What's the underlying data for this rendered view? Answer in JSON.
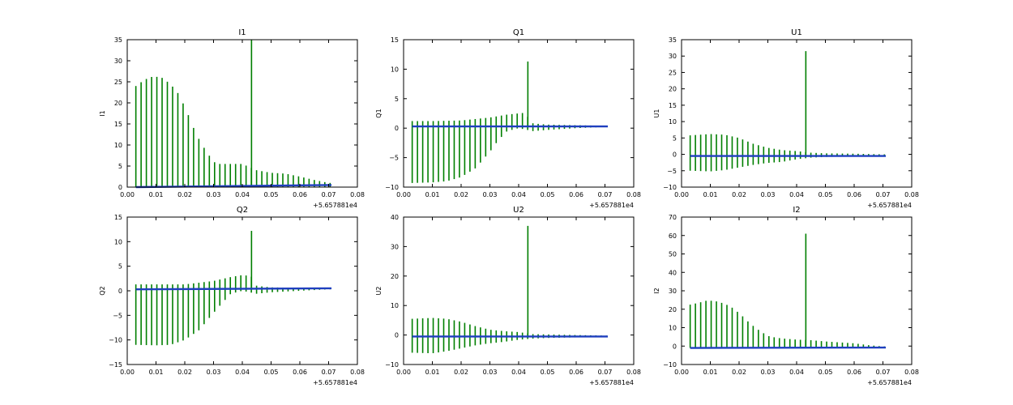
{
  "chart_data": [
    {
      "type": "line",
      "title": "I1",
      "ylabel": "I1",
      "xlabel": "",
      "x_offset_label": "+5.657881e4",
      "xlim": [
        0.0,
        0.08
      ],
      "xticks": [
        "0.00",
        "0.01",
        "0.02",
        "0.03",
        "0.04",
        "0.05",
        "0.06",
        "0.07",
        "0.08"
      ],
      "ylim": [
        0,
        35
      ],
      "yticks": [
        "0",
        "5",
        "10",
        "15",
        "20",
        "25",
        "30",
        "35"
      ],
      "grid": false,
      "colors": {
        "spikes": "#007f00",
        "baseline": "#1f3fbf"
      },
      "baseline": {
        "x0": 0.003,
        "x1": 0.071,
        "y0": 0.0,
        "y1": 0.5
      },
      "spike": {
        "x": 0.0432,
        "y": 35
      },
      "envelope_top": [
        [
          0.003,
          24
        ],
        [
          0.006,
          25.5
        ],
        [
          0.009,
          26.3
        ],
        [
          0.012,
          26
        ],
        [
          0.015,
          24.5
        ],
        [
          0.018,
          22
        ],
        [
          0.021,
          17.5
        ],
        [
          0.024,
          12.5
        ],
        [
          0.027,
          9
        ],
        [
          0.03,
          6
        ],
        [
          0.032,
          5.5
        ],
        [
          0.036,
          5.5
        ],
        [
          0.04,
          5.5
        ],
        [
          0.045,
          4
        ],
        [
          0.05,
          3.4
        ],
        [
          0.055,
          3.2
        ],
        [
          0.06,
          2.5
        ],
        [
          0.065,
          1.7
        ],
        [
          0.07,
          1.0
        ]
      ],
      "envelope_bottom": [
        [
          0.003,
          0
        ],
        [
          0.07,
          0
        ]
      ]
    },
    {
      "type": "line",
      "title": "Q1",
      "ylabel": "Q1",
      "xlabel": "",
      "x_offset_label": "+5.657881e4",
      "xlim": [
        0.0,
        0.08
      ],
      "xticks": [
        "0.00",
        "0.01",
        "0.02",
        "0.03",
        "0.04",
        "0.05",
        "0.06",
        "0.07",
        "0.08"
      ],
      "ylim": [
        -10,
        15
      ],
      "yticks": [
        "−10",
        "−5",
        "0",
        "5",
        "10",
        "15"
      ],
      "grid": false,
      "colors": {
        "spikes": "#007f00",
        "baseline": "#1f3fbf"
      },
      "baseline": {
        "x0": 0.003,
        "x1": 0.071,
        "y0": 0.3,
        "y1": 0.3
      },
      "spike": {
        "x": 0.0432,
        "y": 11.3
      },
      "envelope_top": [
        [
          0.003,
          1.2
        ],
        [
          0.01,
          1.2
        ],
        [
          0.02,
          1.3
        ],
        [
          0.03,
          1.8
        ],
        [
          0.036,
          2.3
        ],
        [
          0.042,
          2.6
        ],
        [
          0.045,
          0.8
        ],
        [
          0.05,
          0.6
        ],
        [
          0.06,
          0.5
        ],
        [
          0.07,
          0.4
        ]
      ],
      "envelope_bottom": [
        [
          0.003,
          -9.3
        ],
        [
          0.01,
          -9.2
        ],
        [
          0.015,
          -9.0
        ],
        [
          0.02,
          -8.3
        ],
        [
          0.025,
          -6.8
        ],
        [
          0.03,
          -4.0
        ],
        [
          0.033,
          -2.0
        ],
        [
          0.036,
          -0.5
        ],
        [
          0.04,
          0
        ],
        [
          0.045,
          -0.5
        ],
        [
          0.05,
          -0.3
        ],
        [
          0.06,
          0
        ],
        [
          0.07,
          0.2
        ]
      ]
    },
    {
      "type": "line",
      "title": "U1",
      "ylabel": "U1",
      "xlabel": "",
      "x_offset_label": "+5.657881e4",
      "xlim": [
        0.0,
        0.08
      ],
      "xticks": [
        "0.00",
        "0.01",
        "0.02",
        "0.03",
        "0.04",
        "0.05",
        "0.06",
        "0.07",
        "0.08"
      ],
      "ylim": [
        -10,
        35
      ],
      "yticks": [
        "−10",
        "−5",
        "0",
        "5",
        "10",
        "15",
        "20",
        "25",
        "30",
        "35"
      ],
      "grid": false,
      "colors": {
        "spikes": "#007f00",
        "baseline": "#1f3fbf"
      },
      "baseline": {
        "x0": 0.003,
        "x1": 0.071,
        "y0": -0.5,
        "y1": -0.5
      },
      "spike": {
        "x": 0.0432,
        "y": 31.5
      },
      "envelope_top": [
        [
          0.003,
          5.8
        ],
        [
          0.01,
          6.2
        ],
        [
          0.015,
          6.0
        ],
        [
          0.02,
          5.0
        ],
        [
          0.025,
          3.2
        ],
        [
          0.03,
          2.0
        ],
        [
          0.035,
          1.3
        ],
        [
          0.04,
          1.0
        ],
        [
          0.045,
          0.5
        ],
        [
          0.05,
          0.3
        ],
        [
          0.06,
          0.2
        ],
        [
          0.07,
          0.0
        ]
      ],
      "envelope_bottom": [
        [
          0.003,
          -5.0
        ],
        [
          0.01,
          -5.2
        ],
        [
          0.015,
          -4.8
        ],
        [
          0.02,
          -4.0
        ],
        [
          0.025,
          -3.2
        ],
        [
          0.03,
          -2.6
        ],
        [
          0.035,
          -2.3
        ],
        [
          0.04,
          -1.5
        ],
        [
          0.045,
          -1.0
        ],
        [
          0.05,
          -0.8
        ],
        [
          0.06,
          -0.6
        ],
        [
          0.07,
          -0.5
        ]
      ]
    },
    {
      "type": "line",
      "title": "Q2",
      "ylabel": "Q2",
      "xlabel": "",
      "x_offset_label": "+5.657881e4",
      "xlim": [
        0.0,
        0.08
      ],
      "xticks": [
        "0.00",
        "0.01",
        "0.02",
        "0.03",
        "0.04",
        "0.05",
        "0.06",
        "0.07",
        "0.08"
      ],
      "ylim": [
        -15,
        15
      ],
      "yticks": [
        "−15",
        "−10",
        "−5",
        "0",
        "5",
        "10",
        "15"
      ],
      "grid": false,
      "colors": {
        "spikes": "#007f00",
        "baseline": "#1f3fbf"
      },
      "baseline": {
        "x0": 0.003,
        "x1": 0.071,
        "y0": 0.3,
        "y1": 0.5
      },
      "spike": {
        "x": 0.0432,
        "y": 12.2
      },
      "envelope_top": [
        [
          0.003,
          1.3
        ],
        [
          0.01,
          1.3
        ],
        [
          0.02,
          1.3
        ],
        [
          0.03,
          2.0
        ],
        [
          0.036,
          2.8
        ],
        [
          0.04,
          3.2
        ],
        [
          0.043,
          3.0
        ],
        [
          0.045,
          1.0
        ],
        [
          0.05,
          0.7
        ],
        [
          0.06,
          0.6
        ],
        [
          0.07,
          0.5
        ]
      ],
      "envelope_bottom": [
        [
          0.003,
          -11.0
        ],
        [
          0.01,
          -11.1
        ],
        [
          0.015,
          -11.0
        ],
        [
          0.02,
          -10.0
        ],
        [
          0.025,
          -8.0
        ],
        [
          0.03,
          -4.5
        ],
        [
          0.033,
          -2.5
        ],
        [
          0.036,
          -0.6
        ],
        [
          0.04,
          0
        ],
        [
          0.045,
          -0.6
        ],
        [
          0.05,
          -0.3
        ],
        [
          0.06,
          0
        ],
        [
          0.07,
          0.3
        ]
      ]
    },
    {
      "type": "line",
      "title": "U2",
      "ylabel": "U2",
      "xlabel": "",
      "x_offset_label": "+5.657881e4",
      "xlim": [
        0.0,
        0.08
      ],
      "xticks": [
        "0.00",
        "0.01",
        "0.02",
        "0.03",
        "0.04",
        "0.05",
        "0.06",
        "0.07",
        "0.08"
      ],
      "ylim": [
        -10,
        40
      ],
      "yticks": [
        "−10",
        "0",
        "10",
        "20",
        "30",
        "40"
      ],
      "grid": false,
      "colors": {
        "spikes": "#007f00",
        "baseline": "#1f3fbf"
      },
      "baseline": {
        "x0": 0.003,
        "x1": 0.071,
        "y0": -0.5,
        "y1": -0.5
      },
      "spike": {
        "x": 0.0432,
        "y": 37
      },
      "envelope_top": [
        [
          0.003,
          5.5
        ],
        [
          0.01,
          5.8
        ],
        [
          0.015,
          5.5
        ],
        [
          0.02,
          4.5
        ],
        [
          0.025,
          3.0
        ],
        [
          0.03,
          1.8
        ],
        [
          0.035,
          1.3
        ],
        [
          0.04,
          1.0
        ],
        [
          0.045,
          0.3
        ],
        [
          0.05,
          0.2
        ],
        [
          0.06,
          0.0
        ],
        [
          0.07,
          -0.2
        ]
      ],
      "envelope_bottom": [
        [
          0.003,
          -6.0
        ],
        [
          0.01,
          -6.2
        ],
        [
          0.015,
          -5.5
        ],
        [
          0.02,
          -4.5
        ],
        [
          0.025,
          -3.5
        ],
        [
          0.03,
          -2.8
        ],
        [
          0.035,
          -2.3
        ],
        [
          0.04,
          -1.6
        ],
        [
          0.045,
          -1.2
        ],
        [
          0.05,
          -1.0
        ],
        [
          0.06,
          -0.8
        ],
        [
          0.07,
          -0.6
        ]
      ]
    },
    {
      "type": "line",
      "title": "I2",
      "ylabel": "I2",
      "xlabel": "",
      "x_offset_label": "+5.657881e4",
      "xlim": [
        0.0,
        0.08
      ],
      "xticks": [
        "0.00",
        "0.01",
        "0.02",
        "0.03",
        "0.04",
        "0.05",
        "0.06",
        "0.07",
        "0.08"
      ],
      "ylim": [
        -10,
        70
      ],
      "yticks": [
        "−10",
        "0",
        "10",
        "20",
        "30",
        "40",
        "50",
        "60",
        "70"
      ],
      "grid": false,
      "colors": {
        "spikes": "#007f00",
        "baseline": "#1f3fbf"
      },
      "baseline": {
        "x0": 0.003,
        "x1": 0.071,
        "y0": -1.0,
        "y1": -0.8
      },
      "spike": {
        "x": 0.0432,
        "y": 61
      },
      "envelope_top": [
        [
          0.003,
          22.5
        ],
        [
          0.006,
          23.5
        ],
        [
          0.009,
          24.8
        ],
        [
          0.012,
          24.3
        ],
        [
          0.015,
          23.0
        ],
        [
          0.018,
          20.5
        ],
        [
          0.021,
          16.5
        ],
        [
          0.024,
          12.0
        ],
        [
          0.027,
          8.5
        ],
        [
          0.03,
          5.5
        ],
        [
          0.033,
          4.5
        ],
        [
          0.036,
          4.0
        ],
        [
          0.04,
          3.5
        ],
        [
          0.045,
          3.2
        ],
        [
          0.05,
          2.5
        ],
        [
          0.055,
          2.0
        ],
        [
          0.06,
          1.5
        ],
        [
          0.065,
          0.5
        ],
        [
          0.07,
          -0.2
        ]
      ],
      "envelope_bottom": [
        [
          0.003,
          -1.0
        ],
        [
          0.07,
          -0.8
        ]
      ]
    }
  ]
}
